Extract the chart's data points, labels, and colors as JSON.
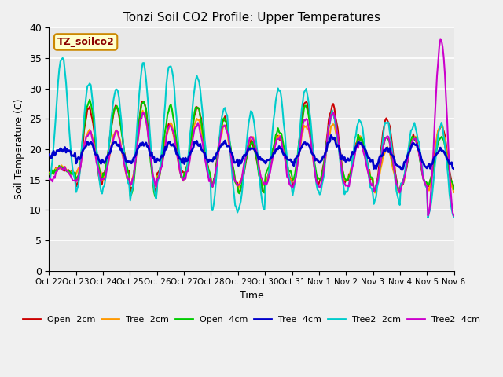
{
  "title": "Tonzi Soil CO2 Profile: Upper Temperatures",
  "xlabel": "Time",
  "ylabel": "Soil Temperature (C)",
  "annotation": "TZ_soilco2",
  "ylim": [
    0,
    40
  ],
  "yticks": [
    0,
    5,
    10,
    15,
    20,
    25,
    30,
    35,
    40
  ],
  "plot_bg_color": "#e8e8e8",
  "fig_bg_color": "#f0f0f0",
  "legend": [
    "Open -2cm",
    "Tree -2cm",
    "Open -4cm",
    "Tree -4cm",
    "Tree2 -2cm",
    "Tree2 -4cm"
  ],
  "legend_colors": [
    "#cc0000",
    "#ff9900",
    "#00cc00",
    "#0000cc",
    "#00cccc",
    "#cc00cc"
  ],
  "x_tick_labels": [
    "Oct 22",
    "Oct 23",
    "Oct 24",
    "Oct 25",
    "Oct 26",
    "Oct 27",
    "Oct 28",
    "Oct 29",
    "Oct 30",
    "Oct 31",
    "Nov 1",
    "Nov 2",
    "Nov 3",
    "Nov 4",
    "Nov 5",
    "Nov 6"
  ],
  "series_keys": [
    "open_2cm",
    "tree_2cm",
    "open_4cm",
    "tree_4cm",
    "tree2_2cm",
    "tree2_4cm"
  ],
  "series": {
    "open_2cm": {
      "peaks": [
        17,
        27,
        27,
        28,
        24,
        27,
        25,
        21,
        22,
        28,
        27,
        22,
        25,
        22,
        24,
        17
      ],
      "troughs": [
        16,
        14,
        16,
        13,
        16,
        16,
        14,
        13,
        15,
        14,
        15,
        15,
        13,
        14,
        14,
        10
      ]
    },
    "tree_2cm": {
      "peaks": [
        17,
        23,
        23,
        26,
        24,
        25,
        24,
        22,
        22,
        24,
        24,
        22,
        20,
        22,
        24,
        17
      ],
      "troughs": [
        16,
        16,
        15,
        14,
        15,
        16,
        14,
        14,
        15,
        15,
        15,
        15,
        13,
        14,
        13,
        10
      ]
    },
    "open_4cm": {
      "peaks": [
        17,
        28,
        27,
        28,
        27,
        27,
        25,
        21,
        23,
        27,
        26,
        22,
        22,
        22,
        22,
        16
      ],
      "troughs": [
        16,
        15,
        16,
        12,
        15,
        16,
        14,
        13,
        16,
        15,
        15,
        15,
        13,
        14,
        14,
        10
      ]
    },
    "tree_4cm": {
      "peaks": [
        20,
        21,
        21,
        21,
        21,
        21,
        21,
        20,
        20,
        21,
        22,
        21,
        20,
        21,
        20,
        17
      ],
      "troughs": [
        19,
        18,
        18,
        18,
        18,
        18,
        18,
        18,
        18,
        18,
        18,
        18,
        17,
        17,
        17,
        15
      ]
    },
    "tree2_2cm": {
      "peaks": [
        35,
        31,
        30,
        34,
        34,
        32,
        27,
        26,
        30,
        30,
        26,
        25,
        25,
        24,
        24,
        23
      ],
      "troughs": [
        15,
        13,
        14,
        12,
        15,
        15,
        10,
        10,
        14,
        13,
        13,
        13,
        11,
        14,
        9,
        9
      ]
    },
    "tree2_4cm": {
      "peaks": [
        17,
        23,
        23,
        26,
        24,
        24,
        24,
        22,
        22,
        25,
        26,
        21,
        22,
        22,
        38,
        23
      ],
      "troughs": [
        15,
        15,
        15,
        14,
        15,
        15,
        14,
        14,
        14,
        14,
        14,
        14,
        13,
        14,
        9,
        10
      ]
    }
  },
  "linewidths": [
    1.5,
    1.5,
    1.5,
    2.0,
    1.5,
    1.5
  ]
}
